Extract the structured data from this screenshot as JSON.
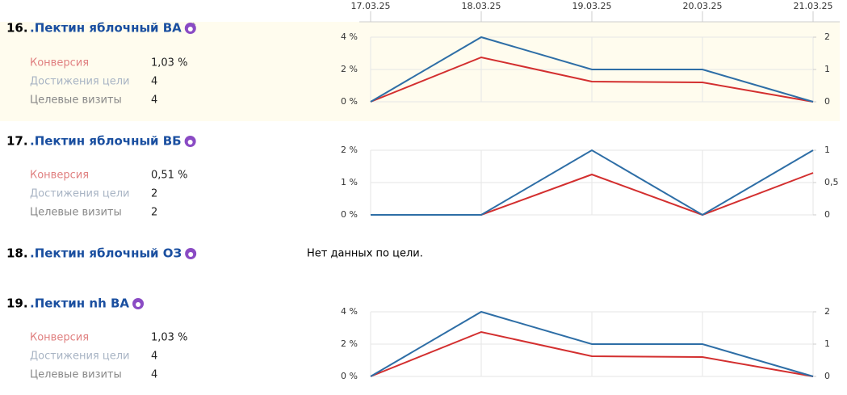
{
  "dates": [
    "17.03.25",
    "18.03.25",
    "19.03.25",
    "20.03.25",
    "21.03.25"
  ],
  "goals": [
    {
      "number": "16.",
      "name": ".Пектин яблочный ВА",
      "metrics": [
        {
          "label": "Конверсия",
          "value": "1,03 %"
        },
        {
          "label": "Достижения цели",
          "value": "4"
        },
        {
          "label": "Целевые визиты",
          "value": "4"
        }
      ],
      "chart": {
        "type": "line",
        "ylim": [
          0,
          4
        ],
        "yticks": [
          {
            "value": 0,
            "label": "0 %"
          },
          {
            "value": 2,
            "label": "2 %"
          },
          {
            "value": 4,
            "label": "4 %"
          }
        ],
        "y2lim": [
          0,
          2
        ],
        "y2ticks": [
          0,
          1,
          2
        ],
        "series": [
          {
            "color": "#d32f2f",
            "values": [
              0,
              2.75,
              1.25,
              1.2,
              0
            ]
          },
          {
            "color": "#2e6ea6",
            "axis": "y2",
            "values": [
              0,
              2,
              1,
              1,
              0
            ]
          }
        ]
      }
    },
    {
      "number": "17.",
      "name": ".Пектин яблочный ВБ",
      "metrics": [
        {
          "label": "Конверсия",
          "value": "0,51 %"
        },
        {
          "label": "Достижения цели",
          "value": "2"
        },
        {
          "label": "Целевые визиты",
          "value": "2"
        }
      ],
      "chart": {
        "type": "line",
        "ylim": [
          0,
          2
        ],
        "yticks": [
          {
            "value": 0,
            "label": "0 %"
          },
          {
            "value": 1,
            "label": "1 %"
          },
          {
            "value": 2,
            "label": "2 %"
          }
        ],
        "y2lim": [
          0,
          1
        ],
        "y2ticks": [
          0,
          {
            "value": 0.5,
            "label": "0,5"
          },
          1
        ],
        "series": [
          {
            "color": "#d32f2f",
            "values": [
              0,
              0,
              1.25,
              0,
              1.3
            ]
          },
          {
            "color": "#2e6ea6",
            "axis": "y2",
            "values": [
              0,
              0,
              1,
              0,
              1
            ]
          }
        ]
      }
    },
    {
      "number": "18.",
      "name": ".Пектин яблочный ОЗ",
      "message": "Нет данных по цели."
    },
    {
      "number": "19.",
      "name": ".Пектин nh ВА",
      "metrics": [
        {
          "label": "Конверсия",
          "value": "1,03 %"
        },
        {
          "label": "Достижения цели",
          "value": "4"
        },
        {
          "label": "Целевые визиты",
          "value": "4"
        }
      ],
      "chart": {
        "type": "line",
        "ylim": [
          0,
          4
        ],
        "yticks": [
          {
            "value": 0,
            "label": "0 %"
          },
          {
            "value": 2,
            "label": "2 %"
          },
          {
            "value": 4,
            "label": "4 %"
          }
        ],
        "y2lim": [
          0,
          2
        ],
        "y2ticks": [
          0,
          1,
          2
        ],
        "series": [
          {
            "color": "#d32f2f",
            "values": [
              0,
              2.75,
              1.25,
              1.2,
              0
            ]
          },
          {
            "color": "#2e6ea6",
            "axis": "y2",
            "values": [
              0,
              2,
              1,
              1,
              0
            ]
          }
        ]
      }
    }
  ]
}
